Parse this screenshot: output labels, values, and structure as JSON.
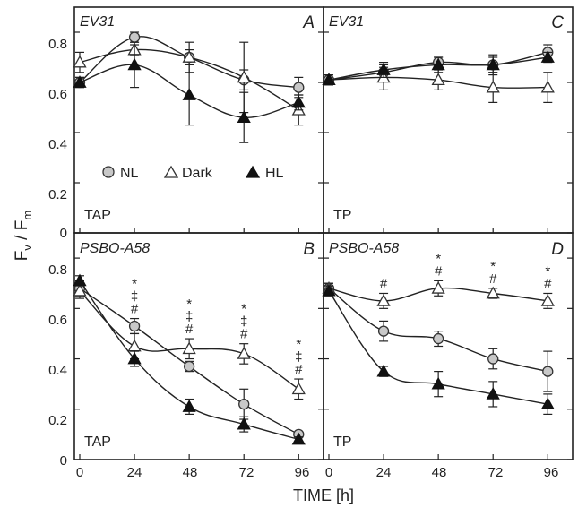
{
  "figure": {
    "ylabel_main": "F",
    "ylabel_sub_v": "v",
    "ylabel_slash": " / F",
    "ylabel_sub_m": "m",
    "xlabel": "TIME [h]",
    "x_ticks": [
      "0",
      "24",
      "48",
      "72",
      "96"
    ],
    "y_ticks": [
      "0",
      "0.2",
      "0.4",
      "0.6",
      "0.8"
    ],
    "legend": {
      "NL": "NL",
      "Dark": "Dark",
      "HL": "HL"
    }
  },
  "chart_data": [
    {
      "id": "A",
      "type": "line",
      "letter": "A",
      "strain": "EV31",
      "medium": "TAP",
      "x": [
        0,
        24,
        48,
        72,
        96
      ],
      "xlim": [
        0,
        100
      ],
      "ylim": [
        0,
        0.9
      ],
      "series": [
        {
          "name": "NL",
          "values": [
            0.6,
            0.78,
            0.7,
            0.61,
            0.58
          ],
          "errors": [
            0.02,
            0.02,
            0.03,
            0.04,
            0.04
          ]
        },
        {
          "name": "Dark",
          "values": [
            0.68,
            0.73,
            0.7,
            0.62,
            0.49
          ],
          "errors": [
            0.04,
            0.02,
            0.06,
            0.14,
            0.06
          ]
        },
        {
          "name": "HL",
          "values": [
            0.6,
            0.67,
            0.55,
            0.46,
            0.52
          ],
          "errors": [
            0.02,
            0.09,
            0.12,
            0.1,
            0.03
          ]
        }
      ],
      "annotations": []
    },
    {
      "id": "C",
      "type": "line",
      "letter": "C",
      "strain": "EV31",
      "medium": "TP",
      "x": [
        0,
        24,
        48,
        72,
        96
      ],
      "xlim": [
        0,
        100
      ],
      "ylim": [
        0,
        0.9
      ],
      "series": [
        {
          "name": "NL",
          "values": [
            0.61,
            0.64,
            0.68,
            0.67,
            0.72
          ],
          "errors": [
            0.02,
            0.02,
            0.02,
            0.03,
            0.03
          ]
        },
        {
          "name": "Dark",
          "values": [
            0.61,
            0.62,
            0.61,
            0.58,
            0.58
          ],
          "errors": [
            0.02,
            0.05,
            0.04,
            0.06,
            0.06
          ]
        },
        {
          "name": "HL",
          "values": [
            0.61,
            0.65,
            0.67,
            0.67,
            0.7
          ],
          "errors": [
            0.02,
            0.03,
            0.03,
            0.04,
            0.02
          ]
        }
      ],
      "annotations": []
    },
    {
      "id": "B",
      "type": "line",
      "letter": "B",
      "strain": "PSBO-A58",
      "medium": "TAP",
      "x": [
        0,
        24,
        48,
        72,
        96
      ],
      "xlim": [
        0,
        100
      ],
      "ylim": [
        0,
        0.9
      ],
      "series": [
        {
          "name": "NL",
          "values": [
            0.68,
            0.53,
            0.37,
            0.22,
            0.1
          ],
          "errors": [
            0.03,
            0.03,
            0.02,
            0.06,
            0.01
          ]
        },
        {
          "name": "Dark",
          "values": [
            0.67,
            0.45,
            0.44,
            0.42,
            0.28
          ],
          "errors": [
            0.03,
            0.05,
            0.04,
            0.04,
            0.04
          ]
        },
        {
          "name": "HL",
          "values": [
            0.71,
            0.4,
            0.21,
            0.14,
            0.08
          ],
          "errors": [
            0.02,
            0.03,
            0.03,
            0.03,
            0.01
          ]
        }
      ],
      "annotations": [
        {
          "x": 24,
          "marks": [
            "*",
            "‡",
            "#"
          ]
        },
        {
          "x": 48,
          "marks": [
            "*",
            "‡",
            "#"
          ]
        },
        {
          "x": 72,
          "marks": [
            "*",
            "‡",
            "#"
          ]
        },
        {
          "x": 96,
          "marks": [
            "*",
            "‡",
            "#"
          ]
        }
      ]
    },
    {
      "id": "D",
      "type": "line",
      "letter": "D",
      "strain": "PSBO-A58",
      "medium": "TP",
      "x": [
        0,
        24,
        48,
        72,
        96
      ],
      "xlim": [
        0,
        100
      ],
      "ylim": [
        0,
        0.9
      ],
      "series": [
        {
          "name": "NL",
          "values": [
            0.68,
            0.51,
            0.48,
            0.4,
            0.35
          ],
          "errors": [
            0.02,
            0.04,
            0.03,
            0.04,
            0.08
          ]
        },
        {
          "name": "Dark",
          "values": [
            0.68,
            0.63,
            0.68,
            0.66,
            0.63
          ],
          "errors": [
            0.02,
            0.03,
            0.03,
            0.02,
            0.03
          ]
        },
        {
          "name": "HL",
          "values": [
            0.67,
            0.35,
            0.3,
            0.26,
            0.22
          ],
          "errors": [
            0.02,
            0.02,
            0.05,
            0.05,
            0.04
          ]
        }
      ],
      "annotations": [
        {
          "x": 24,
          "marks": [
            "#"
          ]
        },
        {
          "x": 48,
          "marks": [
            "*",
            "#"
          ]
        },
        {
          "x": 72,
          "marks": [
            "*",
            "#"
          ]
        },
        {
          "x": 96,
          "marks": [
            "*",
            "#"
          ]
        }
      ]
    }
  ]
}
